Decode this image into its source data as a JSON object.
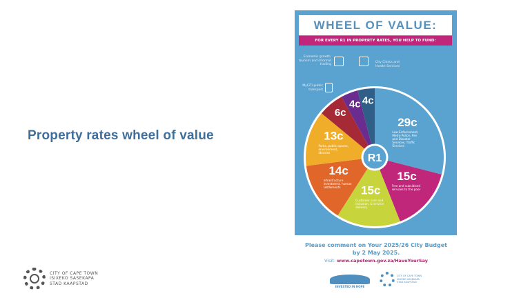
{
  "slide": {
    "title": "Property rates wheel of value"
  },
  "logo": {
    "lines": [
      "CITY OF CAPE TOWN",
      "ISIXEKO SASEKAPA",
      "STAD KAAPSTAD"
    ]
  },
  "poster": {
    "title": "WHEEL OF VALUE:",
    "subtitle": "FOR EVERY R1 IN PROPERTY RATES, YOU HELP TO FUND:",
    "center_label": "R1",
    "outer_labels": [
      {
        "text": "Economic growth, tourism and informal trading",
        "icon": "growth-chart-icon"
      },
      {
        "text": "City Clinics and Health Services",
        "icon": "clinic-house-icon"
      },
      {
        "text": "MyCiTi public transport",
        "icon": "bus-icon"
      }
    ],
    "slices": [
      {
        "value": "29c",
        "amount": 29,
        "color": "#5aa2d0",
        "desc": "Law Enforcement, Metro Police, Fire and Disaster Services, Traffic Services",
        "icon": "siren-icon"
      },
      {
        "value": "15c",
        "amount": 15,
        "color": "#c0267a",
        "desc": "Free and subsidised services to the poor",
        "icon": "heart-icon"
      },
      {
        "value": "15c",
        "amount": 15,
        "color": "#c8d43c",
        "desc": "Customer care and inclusion, & service delivery",
        "icon": "hand-heart-icon"
      },
      {
        "value": "14c",
        "amount": 14,
        "color": "#e0662a",
        "desc": "Infrastructure investment, human settlements",
        "icon": "crane-icon"
      },
      {
        "value": "13c",
        "amount": 13,
        "color": "#f0ad2a",
        "desc": "Parks, public spaces, environment, libraries",
        "icon": "trees-icon"
      },
      {
        "value": "6c",
        "amount": 6,
        "color": "#a52a35",
        "desc": "",
        "icon": ""
      },
      {
        "value": "4c",
        "amount": 4,
        "color": "#6a2c8e",
        "desc": "",
        "icon": ""
      },
      {
        "value": "4c",
        "amount": 4,
        "color": "#2f5f86",
        "desc": "",
        "icon": ""
      }
    ]
  },
  "cta": {
    "line1": "Please comment on Your 2025/26 City Budget",
    "line2": "by 2 May 2025.",
    "visit_label": "Visit:",
    "url": "www.capetown.gov.za/HaveYourSay"
  },
  "footer_logos": {
    "hope": "INVESTED IN HOPE",
    "ct_lines": [
      "CITY OF CAPE TOWN",
      "ISIXEKO SASEKAPA",
      "STAD KAAPSTAD"
    ]
  }
}
